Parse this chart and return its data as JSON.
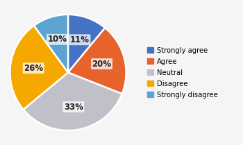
{
  "labels": [
    "Strongly agree",
    "Agree",
    "Neutral",
    "Disagree",
    "Strongly disagree"
  ],
  "values": [
    11,
    20,
    33,
    26,
    10
  ],
  "colors": [
    "#4472C4",
    "#E8622C",
    "#C0C0C8",
    "#F5A800",
    "#5BA3D0"
  ],
  "pct_labels": [
    "11%",
    "20%",
    "33%",
    "26%",
    "10%"
  ],
  "background_color": "#f5f5f5",
  "legend_fontsize": 7.2,
  "pct_fontsize": 8.5,
  "startangle": 90
}
